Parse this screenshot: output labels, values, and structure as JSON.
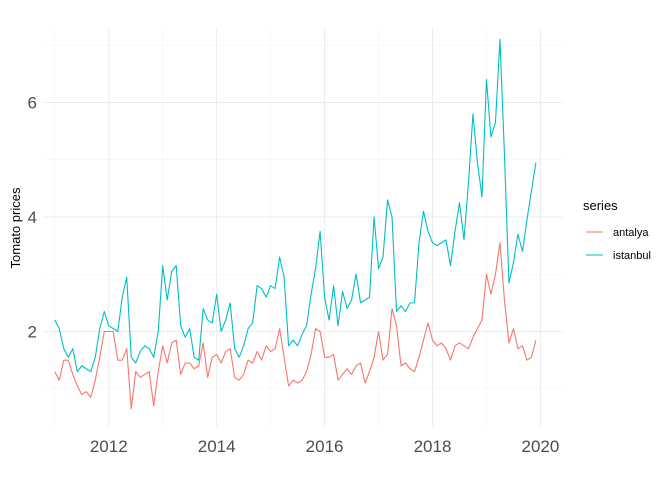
{
  "chart_data": {
    "type": "line",
    "title": "",
    "xlabel": "",
    "ylabel": "Tomato prices",
    "xlim": [
      2010.8,
      2020.4
    ],
    "ylim": [
      0.35,
      7.3
    ],
    "x_ticks": [
      2012,
      2014,
      2016,
      2018,
      2020
    ],
    "y_ticks": [
      2,
      4,
      6
    ],
    "grid": true,
    "legend": {
      "title": "series",
      "position": "right"
    },
    "series": [
      {
        "name": "antalya",
        "color": "#F8766D",
        "x": [
          2011.0,
          2011.083,
          2011.167,
          2011.25,
          2011.333,
          2011.417,
          2011.5,
          2011.583,
          2011.667,
          2011.75,
          2011.833,
          2011.917,
          2012.0,
          2012.083,
          2012.167,
          2012.25,
          2012.333,
          2012.417,
          2012.5,
          2012.583,
          2012.667,
          2012.75,
          2012.833,
          2012.917,
          2013.0,
          2013.083,
          2013.167,
          2013.25,
          2013.333,
          2013.417,
          2013.5,
          2013.583,
          2013.667,
          2013.75,
          2013.833,
          2013.917,
          2014.0,
          2014.083,
          2014.167,
          2014.25,
          2014.333,
          2014.417,
          2014.5,
          2014.583,
          2014.667,
          2014.75,
          2014.833,
          2014.917,
          2015.0,
          2015.083,
          2015.167,
          2015.25,
          2015.333,
          2015.417,
          2015.5,
          2015.583,
          2015.667,
          2015.75,
          2015.833,
          2015.917,
          2016.0,
          2016.083,
          2016.167,
          2016.25,
          2016.333,
          2016.417,
          2016.5,
          2016.583,
          2016.667,
          2016.75,
          2016.833,
          2016.917,
          2017.0,
          2017.083,
          2017.167,
          2017.25,
          2017.333,
          2017.417,
          2017.5,
          2017.583,
          2017.667,
          2017.75,
          2017.833,
          2017.917,
          2018.0,
          2018.083,
          2018.167,
          2018.25,
          2018.333,
          2018.417,
          2018.5,
          2018.583,
          2018.667,
          2018.75,
          2018.833,
          2018.917,
          2019.0,
          2019.083,
          2019.167,
          2019.25,
          2019.333,
          2019.417,
          2019.5,
          2019.583,
          2019.667,
          2019.75,
          2019.833,
          2019.917
        ],
        "values": [
          1.3,
          1.15,
          1.5,
          1.5,
          1.25,
          1.05,
          0.9,
          0.95,
          0.85,
          1.15,
          1.55,
          2.0,
          2.0,
          2.0,
          1.5,
          1.5,
          1.7,
          0.65,
          1.3,
          1.2,
          1.25,
          1.3,
          0.7,
          1.3,
          1.75,
          1.45,
          1.8,
          1.85,
          1.25,
          1.45,
          1.45,
          1.35,
          1.4,
          1.8,
          1.2,
          1.55,
          1.6,
          1.45,
          1.65,
          1.7,
          1.2,
          1.15,
          1.25,
          1.5,
          1.45,
          1.65,
          1.5,
          1.75,
          1.65,
          1.7,
          2.05,
          1.55,
          1.05,
          1.15,
          1.1,
          1.15,
          1.3,
          1.6,
          2.05,
          2.0,
          1.55,
          1.55,
          1.6,
          1.15,
          1.25,
          1.35,
          1.25,
          1.4,
          1.45,
          1.1,
          1.3,
          1.55,
          2.0,
          1.5,
          1.6,
          2.4,
          2.1,
          1.4,
          1.45,
          1.35,
          1.3,
          1.55,
          1.85,
          2.15,
          1.85,
          1.75,
          1.8,
          1.7,
          1.5,
          1.75,
          1.8,
          1.75,
          1.7,
          1.9,
          2.05,
          2.2,
          3.0,
          2.65,
          3.0,
          3.55,
          2.55,
          1.8,
          2.05,
          1.7,
          1.75,
          1.5,
          1.55,
          1.85
        ]
      },
      {
        "name": "istanbul",
        "color": "#00BFC4",
        "x": [
          2011.0,
          2011.083,
          2011.167,
          2011.25,
          2011.333,
          2011.417,
          2011.5,
          2011.583,
          2011.667,
          2011.75,
          2011.833,
          2011.917,
          2012.0,
          2012.083,
          2012.167,
          2012.25,
          2012.333,
          2012.417,
          2012.5,
          2012.583,
          2012.667,
          2012.75,
          2012.833,
          2012.917,
          2013.0,
          2013.083,
          2013.167,
          2013.25,
          2013.333,
          2013.417,
          2013.5,
          2013.583,
          2013.667,
          2013.75,
          2013.833,
          2013.917,
          2014.0,
          2014.083,
          2014.167,
          2014.25,
          2014.333,
          2014.417,
          2014.5,
          2014.583,
          2014.667,
          2014.75,
          2014.833,
          2014.917,
          2015.0,
          2015.083,
          2015.167,
          2015.25,
          2015.333,
          2015.417,
          2015.5,
          2015.583,
          2015.667,
          2015.75,
          2015.833,
          2015.917,
          2016.0,
          2016.083,
          2016.167,
          2016.25,
          2016.333,
          2016.417,
          2016.5,
          2016.583,
          2016.667,
          2016.75,
          2016.833,
          2016.917,
          2017.0,
          2017.083,
          2017.167,
          2017.25,
          2017.333,
          2017.417,
          2017.5,
          2017.583,
          2017.667,
          2017.75,
          2017.833,
          2017.917,
          2018.0,
          2018.083,
          2018.167,
          2018.25,
          2018.333,
          2018.417,
          2018.5,
          2018.583,
          2018.667,
          2018.75,
          2018.833,
          2018.917,
          2019.0,
          2019.083,
          2019.167,
          2019.25,
          2019.333,
          2019.417,
          2019.5,
          2019.583,
          2019.667,
          2019.75,
          2019.833,
          2019.917
        ],
        "values": [
          2.2,
          2.05,
          1.7,
          1.55,
          1.7,
          1.3,
          1.4,
          1.35,
          1.3,
          1.55,
          2.05,
          2.35,
          2.1,
          2.05,
          2.0,
          2.6,
          2.95,
          1.55,
          1.45,
          1.65,
          1.75,
          1.7,
          1.55,
          2.0,
          3.15,
          2.55,
          3.05,
          3.15,
          2.1,
          1.9,
          2.05,
          1.55,
          1.5,
          2.4,
          2.2,
          2.15,
          2.65,
          2.0,
          2.2,
          2.5,
          1.7,
          1.55,
          1.75,
          2.05,
          2.15,
          2.8,
          2.75,
          2.6,
          2.8,
          2.75,
          3.3,
          2.95,
          1.75,
          1.85,
          1.75,
          1.95,
          2.1,
          2.65,
          3.1,
          3.75,
          2.6,
          2.2,
          2.8,
          2.1,
          2.7,
          2.4,
          2.55,
          3.0,
          2.5,
          2.55,
          2.6,
          4.0,
          3.1,
          3.3,
          4.3,
          4.0,
          2.35,
          2.45,
          2.35,
          2.5,
          2.5,
          3.55,
          4.1,
          3.75,
          3.55,
          3.5,
          3.55,
          3.6,
          3.15,
          3.75,
          4.25,
          3.6,
          4.6,
          5.8,
          4.95,
          4.35,
          6.4,
          5.4,
          5.65,
          7.1,
          5.1,
          2.85,
          3.2,
          3.7,
          3.4,
          3.95,
          4.45,
          4.95
        ]
      }
    ]
  }
}
